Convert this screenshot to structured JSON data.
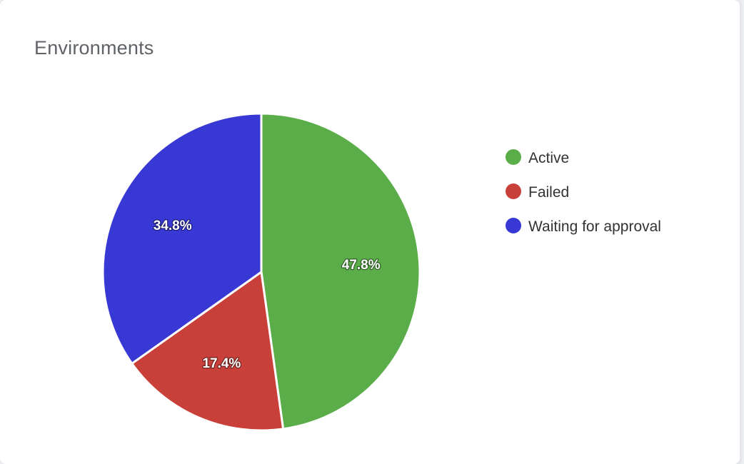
{
  "card": {
    "title": "Environments"
  },
  "chart_data": {
    "type": "pie",
    "title": "Environments",
    "categories": [
      "Active",
      "Failed",
      "Waiting for approval"
    ],
    "values": [
      47.8,
      17.4,
      34.8
    ],
    "labels": [
      "47.8%",
      "17.4%",
      "34.8%"
    ],
    "colors": [
      "#5bad4a",
      "#c9403a",
      "#3838d4"
    ],
    "legend_position": "right",
    "start_direction": "top",
    "direction": "clockwise"
  }
}
